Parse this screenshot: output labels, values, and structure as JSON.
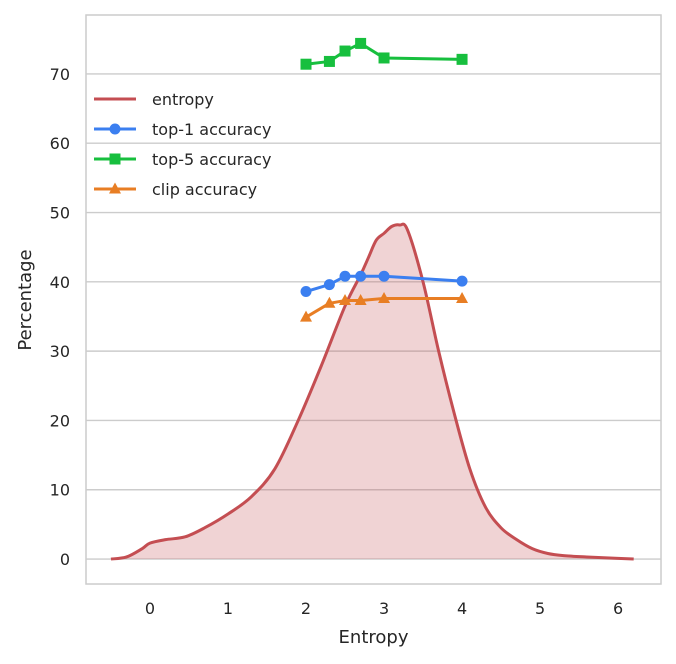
{
  "chart_data": {
    "type": "line",
    "title": "",
    "xlabel": "Entropy",
    "ylabel": "Percentage",
    "xlim": [
      -0.82,
      6.55
    ],
    "ylim": [
      -3.6,
      78.5
    ],
    "xticks": [
      0,
      1,
      2,
      3,
      4,
      5,
      6
    ],
    "yticks": [
      0,
      10,
      20,
      30,
      40,
      50,
      60,
      70
    ],
    "grid": "horizontal",
    "legend_position": "upper-left",
    "series": [
      {
        "name": "entropy",
        "kind": "density",
        "color": "#c44e52",
        "fill": "#c44e52",
        "x": [
          -0.5,
          -0.3,
          -0.1,
          0.0,
          0.2,
          0.45,
          0.7,
          1.0,
          1.3,
          1.6,
          1.9,
          2.2,
          2.5,
          2.7,
          2.8,
          2.9,
          3.0,
          3.1,
          3.2,
          3.3,
          3.5,
          3.7,
          3.9,
          4.1,
          4.3,
          4.5,
          4.7,
          4.9,
          5.1,
          5.3,
          5.6,
          6.0,
          6.2
        ],
        "y": [
          0.0,
          0.3,
          1.5,
          2.3,
          2.8,
          3.2,
          4.5,
          6.5,
          9.0,
          13.0,
          20.0,
          28.0,
          36.5,
          41.0,
          43.5,
          46.0,
          47.0,
          48.0,
          48.2,
          47.5,
          40.0,
          30.0,
          21.0,
          13.0,
          7.5,
          4.5,
          2.8,
          1.5,
          0.8,
          0.5,
          0.3,
          0.1,
          0.0
        ]
      },
      {
        "name": "top-1 accuracy",
        "kind": "line",
        "marker": "circle",
        "color": "#3b7ff0",
        "x": [
          2.0,
          2.3,
          2.5,
          2.7,
          3.0,
          4.0
        ],
        "y": [
          38.6,
          39.6,
          40.8,
          40.8,
          40.8,
          40.1
        ]
      },
      {
        "name": "top-5 accuracy",
        "kind": "line",
        "marker": "square",
        "color": "#17bf3e",
        "x": [
          2.0,
          2.3,
          2.5,
          2.7,
          3.0,
          4.0
        ],
        "y": [
          71.4,
          71.8,
          73.3,
          74.4,
          72.3,
          72.1
        ]
      },
      {
        "name": "clip accuracy",
        "kind": "line",
        "marker": "triangle",
        "color": "#e87e24",
        "x": [
          2.0,
          2.3,
          2.5,
          2.7,
          3.0,
          4.0
        ],
        "y": [
          34.9,
          36.9,
          37.3,
          37.3,
          37.6,
          37.6
        ]
      }
    ]
  }
}
